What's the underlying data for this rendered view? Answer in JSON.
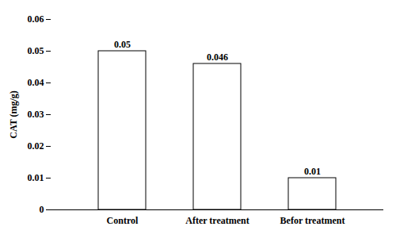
{
  "chart_data": {
    "type": "bar",
    "categories": [
      "Control",
      "After treatment",
      "Befor treatment"
    ],
    "values": [
      0.05,
      0.046,
      0.01
    ],
    "ylabel": "CAT (mg/g)",
    "color": "white",
    "ylim": [
      0,
      0.06
    ],
    "yticks": [
      0,
      0.01,
      0.02,
      0.03,
      0.04,
      0.05,
      0.06
    ],
    "data_labels": true
  }
}
